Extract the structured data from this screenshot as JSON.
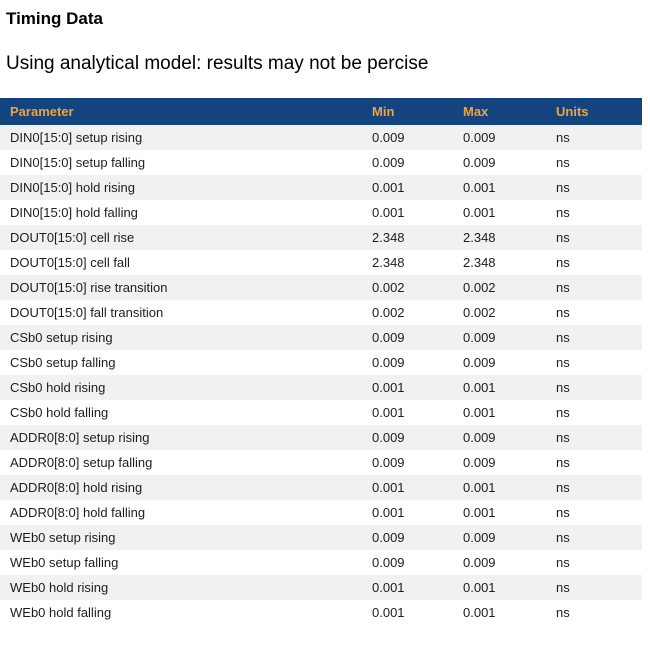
{
  "page": {
    "title": "Timing Data",
    "subtitle": "Using analytical model: results may not be percise"
  },
  "table": {
    "columns": [
      "Parameter",
      "Min",
      "Max",
      "Units"
    ],
    "rows": [
      {
        "parameter": "DIN0[15:0] setup rising",
        "min": "0.009",
        "max": "0.009",
        "units": "ns"
      },
      {
        "parameter": "DIN0[15:0] setup falling",
        "min": "0.009",
        "max": "0.009",
        "units": "ns"
      },
      {
        "parameter": "DIN0[15:0] hold rising",
        "min": "0.001",
        "max": "0.001",
        "units": "ns"
      },
      {
        "parameter": "DIN0[15:0] hold falling",
        "min": "0.001",
        "max": "0.001",
        "units": "ns"
      },
      {
        "parameter": "DOUT0[15:0] cell rise",
        "min": "2.348",
        "max": "2.348",
        "units": "ns"
      },
      {
        "parameter": "DOUT0[15:0] cell fall",
        "min": "2.348",
        "max": "2.348",
        "units": "ns"
      },
      {
        "parameter": "DOUT0[15:0] rise transition",
        "min": "0.002",
        "max": "0.002",
        "units": "ns"
      },
      {
        "parameter": "DOUT0[15:0] fall transition",
        "min": "0.002",
        "max": "0.002",
        "units": "ns"
      },
      {
        "parameter": "CSb0 setup rising",
        "min": "0.009",
        "max": "0.009",
        "units": "ns"
      },
      {
        "parameter": "CSb0 setup falling",
        "min": "0.009",
        "max": "0.009",
        "units": "ns"
      },
      {
        "parameter": "CSb0 hold rising",
        "min": "0.001",
        "max": "0.001",
        "units": "ns"
      },
      {
        "parameter": "CSb0 hold falling",
        "min": "0.001",
        "max": "0.001",
        "units": "ns"
      },
      {
        "parameter": "ADDR0[8:0] setup rising",
        "min": "0.009",
        "max": "0.009",
        "units": "ns"
      },
      {
        "parameter": "ADDR0[8:0] setup falling",
        "min": "0.009",
        "max": "0.009",
        "units": "ns"
      },
      {
        "parameter": "ADDR0[8:0] hold rising",
        "min": "0.001",
        "max": "0.001",
        "units": "ns"
      },
      {
        "parameter": "ADDR0[8:0] hold falling",
        "min": "0.001",
        "max": "0.001",
        "units": "ns"
      },
      {
        "parameter": "WEb0 setup rising",
        "min": "0.009",
        "max": "0.009",
        "units": "ns"
      },
      {
        "parameter": "WEb0 setup falling",
        "min": "0.009",
        "max": "0.009",
        "units": "ns"
      },
      {
        "parameter": "WEb0 hold rising",
        "min": "0.001",
        "max": "0.001",
        "units": "ns"
      },
      {
        "parameter": "WEb0 hold falling",
        "min": "0.001",
        "max": "0.001",
        "units": "ns"
      }
    ]
  },
  "colors": {
    "header_bg": "#134480",
    "header_text": "#F0A33C",
    "row_alt_bg": "#F0F1F1",
    "row_bg": "#FFFFFF",
    "row_text": "#1D1D1D",
    "title_text": "#000000"
  }
}
